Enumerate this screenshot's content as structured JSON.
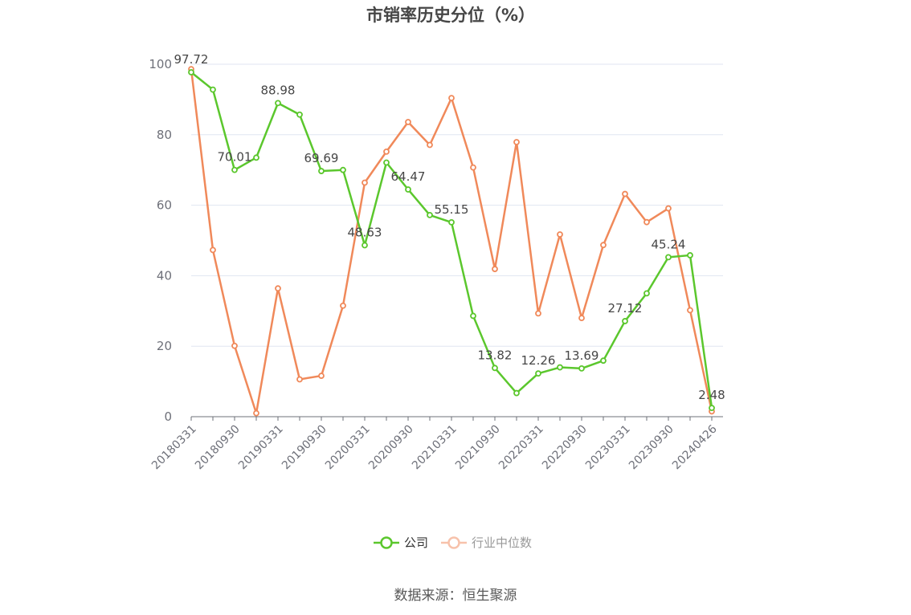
{
  "chart_data": {
    "type": "line",
    "title": "市销率历史分位（%）",
    "source": "数据来源：恒生聚源",
    "ylim": [
      0,
      100
    ],
    "y_ticks": [
      "0",
      "20",
      "40",
      "60",
      "80",
      "100"
    ],
    "x_tick_labels": [
      "20180331",
      "20180930",
      "20190331",
      "20190930",
      "20200331",
      "20200930",
      "20210331",
      "20210930",
      "20220331",
      "20220930",
      "20230331",
      "20230930",
      "20240426"
    ],
    "grid": true,
    "legend_position": "bottom",
    "colors": {
      "company": "#5bc72d",
      "industry": "#f0895a",
      "industry_legend": "#f7c2ab"
    },
    "series": [
      {
        "name": "公司",
        "values": [
          97.72,
          92.8,
          70.01,
          73.5,
          88.98,
          85.7,
          69.69,
          70.0,
          48.63,
          72.1,
          64.47,
          57.2,
          55.15,
          28.6,
          13.82,
          6.7,
          12.26,
          14.0,
          13.69,
          15.9,
          27.12,
          35.0,
          45.24,
          45.8,
          2.48
        ],
        "labels": [
          "97.72",
          "",
          "70.01",
          "",
          "88.98",
          "",
          "69.69",
          "",
          "48.63",
          "",
          "64.47",
          "",
          "55.15",
          "",
          "13.82",
          "",
          "12.26",
          "",
          "13.69",
          "",
          "27.12",
          "",
          "45.24",
          "",
          "2.48"
        ]
      },
      {
        "name": "行业中位数",
        "values": [
          98.6,
          47.3,
          20.1,
          1.0,
          36.4,
          10.6,
          11.6,
          31.5,
          66.4,
          75.2,
          83.6,
          77.1,
          90.4,
          70.7,
          41.9,
          77.9,
          29.3,
          51.7,
          28.0,
          48.7,
          63.2,
          55.2,
          59.1,
          30.2,
          1.5
        ]
      }
    ]
  }
}
